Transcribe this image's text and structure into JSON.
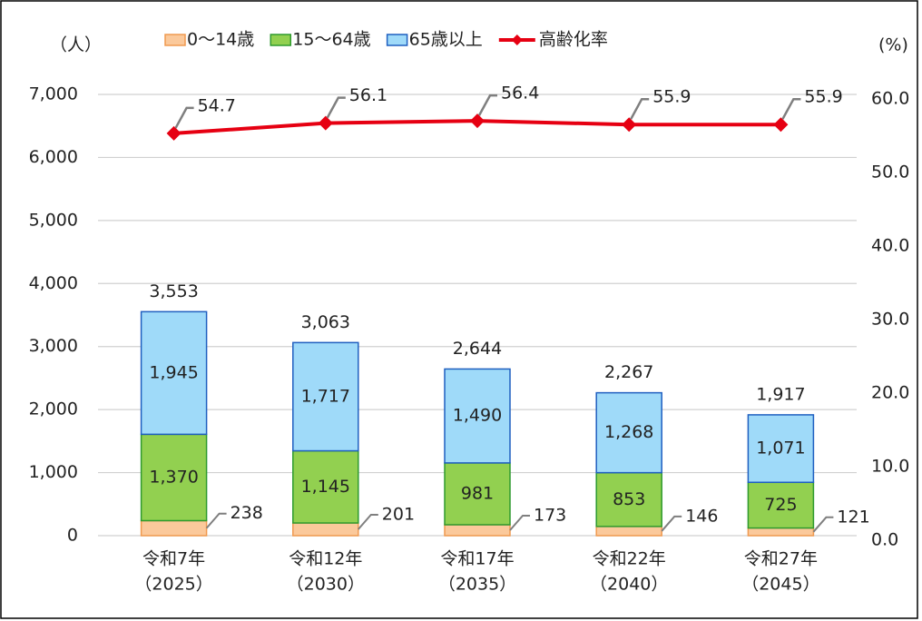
{
  "chart_data": {
    "type": "stacked-bar-line",
    "y_label": "（人）",
    "y2_label": "(%)",
    "categories": [
      [
        "令和7年",
        "（2025）"
      ],
      [
        "令和12年",
        "（2030）"
      ],
      [
        "令和17年",
        "（2035）"
      ],
      [
        "令和22年",
        "（2040）"
      ],
      [
        "令和27年",
        "（2045）"
      ]
    ],
    "series": [
      {
        "name": "0〜14歳",
        "color": "#fbc99b",
        "edge": "#f09a50",
        "values": [
          238,
          201,
          173,
          146,
          121
        ]
      },
      {
        "name": "15〜64歳",
        "color": "#92d050",
        "edge": "#2e9a2e",
        "values": [
          1370,
          1145,
          981,
          853,
          725
        ],
        "value_labels": [
          "1,370",
          "1,145",
          "981",
          "853",
          "725"
        ]
      },
      {
        "name": "65歳以上",
        "color": "#9fdaf9",
        "edge": "#1f5fc0",
        "values": [
          1945,
          1717,
          1490,
          1268,
          1071
        ],
        "value_labels": [
          "1,945",
          "1,717",
          "1,490",
          "1,268",
          "1,071"
        ]
      },
      {
        "name": "高齢化率",
        "type": "line",
        "axis": "y2",
        "color": "#e60012",
        "values": [
          54.7,
          56.1,
          56.4,
          55.9,
          55.9
        ]
      }
    ],
    "totals": [
      3553,
      3063,
      2644,
      2267,
      1917
    ],
    "total_labels": [
      "3,553",
      "3,063",
      "2,644",
      "2,267",
      "1,917"
    ],
    "ylim": [
      0,
      7000
    ],
    "yticks": [
      0,
      {
        "value": 1000,
        "label": "1,000"
      },
      {
        "value": 2000,
        "label": "2,000"
      },
      {
        "value": 3000,
        "label": "3,000"
      },
      {
        "value": 4000,
        "label": "4,000"
      },
      {
        "value": 5000,
        "label": "5,000"
      },
      {
        "value": 6000,
        "label": "6,000"
      },
      {
        "value": 7000,
        "label": "7,000"
      }
    ],
    "y2lim": [
      0,
      60
    ],
    "y2ticks": [
      {
        "value": 0,
        "label": "0.0"
      },
      {
        "value": 10,
        "label": "10.0"
      },
      {
        "value": 20,
        "label": "20.0"
      },
      {
        "value": 30,
        "label": "30.0"
      },
      {
        "value": 40,
        "label": "40.0"
      },
      {
        "value": 50,
        "label": "50.0"
      },
      {
        "value": 60,
        "label": "60.0"
      }
    ],
    "grid": true,
    "legend": "top"
  }
}
